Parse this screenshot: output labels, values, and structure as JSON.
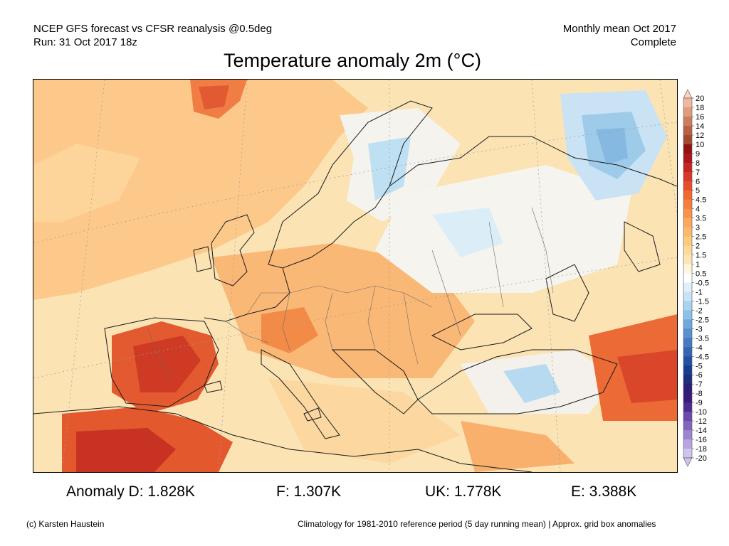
{
  "header": {
    "line1_left": "NCEP GFS forecast vs CFSR reanalysis @0.5deg",
    "line2_left": "Run: 31 Oct 2017 18z",
    "line1_right": "Monthly mean Oct 2017",
    "line2_right": "Complete"
  },
  "title": "Temperature anomaly 2m (°C)",
  "legend": {
    "levels": [
      "20",
      "18",
      "16",
      "14",
      "12",
      "10",
      "9",
      "8",
      "7",
      "6",
      "5",
      "4.5",
      "4",
      "3.5",
      "3",
      "2.5",
      "2",
      "1.5",
      "1",
      "0.5",
      "-0.5",
      "-1",
      "-1.5",
      "-2",
      "-2.5",
      "-3",
      "-3.5",
      "-4",
      "-4.5",
      "-5",
      "-6",
      "-7",
      "-8",
      "-9",
      "-10",
      "-12",
      "-14",
      "-16",
      "-18",
      "-20"
    ],
    "colors": [
      "#f8d3c0",
      "#efb79e",
      "#e09c7e",
      "#cb7e5e",
      "#b86244",
      "#a24a30",
      "#8e1414",
      "#a81818",
      "#c42424",
      "#d8382a",
      "#e64e2e",
      "#ee6a32",
      "#f47e3a",
      "#f89248",
      "#fba85a",
      "#fdba6c",
      "#fdcb80",
      "#fdda98",
      "#fde6b4",
      "#fff4dc",
      "#ffffff",
      "#dff0fa",
      "#c6e4f6",
      "#a8d4ef",
      "#8cc2e8",
      "#6fa8dc",
      "#5a90d0",
      "#467ac2",
      "#3466b4",
      "#2352a4",
      "#1a3e8e",
      "#1e2e7a",
      "#2c1d75",
      "#3a1a7c",
      "#4c2c90",
      "#6a4aaa",
      "#8266be",
      "#9c84d0",
      "#b7a4e0",
      "#d0c4ee"
    ]
  },
  "stats": {
    "d": "Anomaly D: 1.828K",
    "f": "F: 1.307K",
    "uk": "UK: 1.778K",
    "e": "E: 3.388K"
  },
  "footer": {
    "credit": "(c) Karsten Haustein",
    "note": "Climatology for 1981-2010 reference period (5 day running mean) | Approx. grid box anomalies"
  }
}
